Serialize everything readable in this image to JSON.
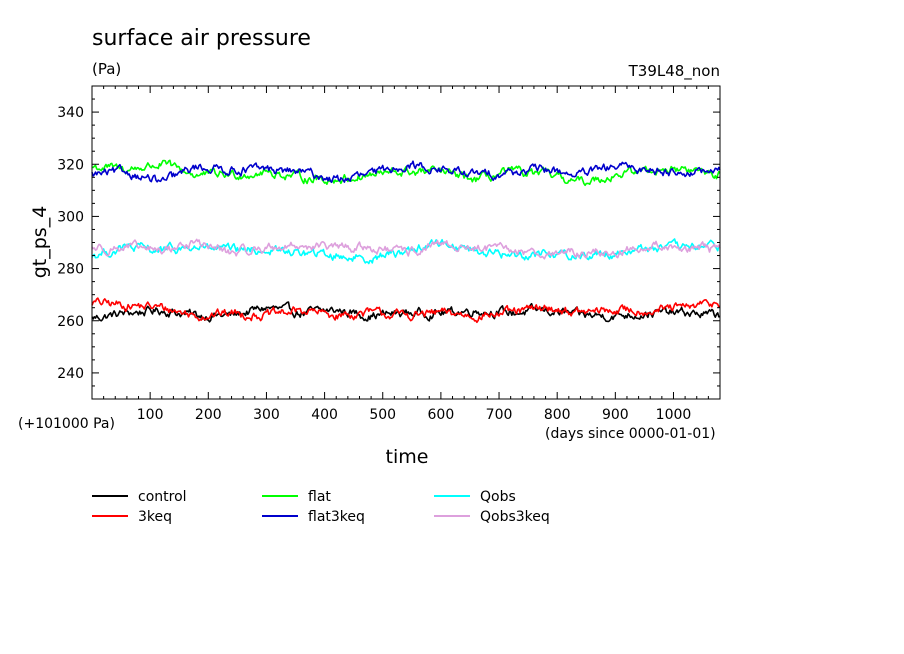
{
  "chart_data": {
    "type": "line",
    "title": "surface air pressure",
    "units": "(Pa)",
    "run_id": "T39L48_non",
    "ylabel": "gt_ps_4",
    "xlabel": "time",
    "offset_note": "(+101000 Pa)",
    "x_note": "(days since 0000-01-01)",
    "xlim": [
      0,
      1080
    ],
    "ylim": [
      230,
      350
    ],
    "xticks": [
      100,
      200,
      300,
      400,
      500,
      600,
      700,
      800,
      900,
      1000
    ],
    "yticks": [
      240,
      260,
      280,
      300,
      320,
      340
    ],
    "series": [
      {
        "name": "control",
        "color": "#000000",
        "x": [
          0,
          60,
          120,
          180,
          240,
          300,
          360,
          420,
          480,
          540,
          600,
          660,
          720,
          780,
          840,
          900,
          960,
          1020,
          1080
        ],
        "values": [
          261,
          263,
          264,
          262,
          262,
          265,
          263,
          264,
          262,
          263,
          263,
          264,
          263,
          264,
          262,
          262,
          263,
          263,
          262
        ]
      },
      {
        "name": "3keq",
        "color": "#ff0000",
        "x": [
          0,
          60,
          120,
          180,
          240,
          300,
          360,
          420,
          480,
          540,
          600,
          660,
          720,
          780,
          840,
          900,
          960,
          1020,
          1080
        ],
        "values": [
          267,
          266,
          265,
          262,
          263,
          262,
          264,
          262,
          263,
          262,
          263,
          262,
          263,
          265,
          263,
          264,
          264,
          265,
          267
        ]
      },
      {
        "name": "flat",
        "color": "#00ff00",
        "x": [
          0,
          60,
          120,
          180,
          240,
          300,
          360,
          420,
          480,
          540,
          600,
          660,
          720,
          780,
          840,
          900,
          960,
          1020,
          1080
        ],
        "values": [
          319,
          318,
          320,
          316,
          316,
          317,
          315,
          314,
          316,
          317,
          317,
          314,
          317,
          316,
          313,
          316,
          318,
          318,
          316
        ]
      },
      {
        "name": "flat3keq",
        "color": "#0000cc",
        "x": [
          0,
          60,
          120,
          180,
          240,
          300,
          360,
          420,
          480,
          540,
          600,
          660,
          720,
          780,
          840,
          900,
          960,
          1020,
          1080
        ],
        "values": [
          316,
          317,
          313,
          319,
          318,
          318,
          317,
          314,
          316,
          320,
          318,
          316,
          317,
          318,
          316,
          319,
          318,
          317,
          317
        ]
      },
      {
        "name": "Qobs",
        "color": "#00ffff",
        "x": [
          0,
          60,
          120,
          180,
          240,
          300,
          360,
          420,
          480,
          540,
          600,
          660,
          720,
          780,
          840,
          900,
          960,
          1020,
          1080
        ],
        "values": [
          285,
          288,
          287,
          288,
          287,
          287,
          286,
          285,
          284,
          287,
          290,
          287,
          285,
          286,
          285,
          286,
          288,
          288,
          289
        ]
      },
      {
        "name": "Qobs3keq",
        "color": "#dda0dd",
        "x": [
          0,
          60,
          120,
          180,
          240,
          300,
          360,
          420,
          480,
          540,
          600,
          660,
          720,
          780,
          840,
          900,
          960,
          1020,
          1080
        ],
        "values": [
          288,
          288,
          287,
          290,
          286,
          288,
          289,
          288,
          288,
          286,
          289,
          288,
          287,
          286,
          286,
          286,
          289,
          288,
          287
        ]
      }
    ]
  }
}
